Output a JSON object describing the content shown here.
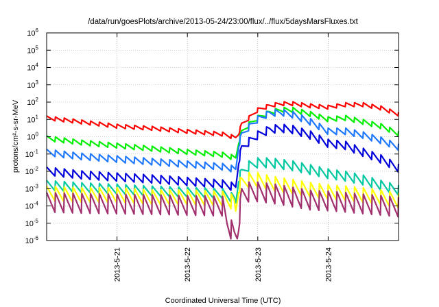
{
  "chart_data": {
    "type": "line",
    "title": "/data/run/goesPlots/archive/2013-05-24/23:00/flux/../flux/5daysMarsFluxes.txt",
    "xlabel": "Coordinated Universal Time (UTC)",
    "ylabel": "protons/cm²-s-sr-MeV",
    "yscale": "log",
    "ylim": [
      1e-06,
      1000000.0
    ],
    "xlim": [
      "2013-05-20T00:00",
      "2013-05-25T00:00"
    ],
    "grid": true,
    "legend": "none",
    "x_ticks": [
      {
        "value": "2013-05-21T00:00",
        "label": "2013-5-21"
      },
      {
        "value": "2013-05-22T00:00",
        "label": "2013-5-22"
      },
      {
        "value": "2013-05-23T00:00",
        "label": "2013-5-23"
      },
      {
        "value": "2013-05-24T00:00",
        "label": "2013-5-24"
      }
    ],
    "y_ticks": [
      {
        "value": 1e-06,
        "base": "10",
        "exp": "-6"
      },
      {
        "value": 1e-05,
        "base": "10",
        "exp": "-5"
      },
      {
        "value": 0.0001,
        "base": "10",
        "exp": "-4"
      },
      {
        "value": 0.001,
        "base": "10",
        "exp": "-3"
      },
      {
        "value": 0.01,
        "base": "10",
        "exp": "-2"
      },
      {
        "value": 0.1,
        "base": "10",
        "exp": "-1"
      },
      {
        "value": 1.0,
        "base": "10",
        "exp": "0"
      },
      {
        "value": 10.0,
        "base": "10",
        "exp": "1"
      },
      {
        "value": 100.0,
        "base": "10",
        "exp": "2"
      },
      {
        "value": 1000.0,
        "base": "10",
        "exp": "3"
      },
      {
        "value": 10000.0,
        "base": "10",
        "exp": "4"
      },
      {
        "value": 100000.0,
        "base": "10",
        "exp": "5"
      },
      {
        "value": 1000000.0,
        "base": "10",
        "exp": "6"
      }
    ],
    "series": [
      {
        "color": "#ff0000",
        "sawtooth": 0.12,
        "x": [
          "2013-05-20T00:00",
          "2013-05-20T12:00",
          "2013-05-21T00:00",
          "2013-05-21T12:00",
          "2013-05-22T00:00",
          "2013-05-22T12:00",
          "2013-05-22T16:00",
          "2013-05-22T16:30",
          "2013-05-22T17:30",
          "2013-05-22T18:30",
          "2013-05-22T21:00",
          "2013-05-23T00:00",
          "2013-05-23T04:00",
          "2013-05-23T08:00",
          "2013-05-23T12:00",
          "2013-05-23T18:00",
          "2013-05-24T00:00",
          "2013-05-24T06:00",
          "2013-05-24T12:00",
          "2013-05-24T18:00",
          "2013-05-25T00:00"
        ],
        "y": [
          12,
          7,
          4,
          3,
          2,
          1.4,
          0.9,
          0.9,
          1.6,
          5,
          12,
          35,
          60,
          80,
          80,
          60,
          50,
          70,
          70,
          45,
          20
        ]
      },
      {
        "color": "#00ee00",
        "sawtooth": 0.15,
        "x": [
          "2013-05-20T00:00",
          "2013-05-20T12:00",
          "2013-05-21T00:00",
          "2013-05-21T12:00",
          "2013-05-22T00:00",
          "2013-05-22T12:00",
          "2013-05-22T16:00",
          "2013-05-22T16:30",
          "2013-05-22T17:30",
          "2013-05-22T18:30",
          "2013-05-22T21:00",
          "2013-05-23T00:00",
          "2013-05-23T04:00",
          "2013-05-23T08:00",
          "2013-05-23T12:00",
          "2013-05-23T18:00",
          "2013-05-24T00:00",
          "2013-05-24T06:00",
          "2013-05-24T12:00",
          "2013-05-24T18:00",
          "2013-05-25T00:00"
        ],
        "y": [
          0.8,
          0.45,
          0.3,
          0.2,
          0.13,
          0.09,
          0.06,
          0.06,
          0.5,
          1.8,
          5,
          12,
          25,
          35,
          35,
          20,
          10,
          12,
          7,
          4,
          1.5
        ]
      },
      {
        "color": "#1e78ff",
        "sawtooth": 0.2,
        "x": [
          "2013-05-20T00:00",
          "2013-05-20T12:00",
          "2013-05-21T00:00",
          "2013-05-21T12:00",
          "2013-05-22T00:00",
          "2013-05-22T12:00",
          "2013-05-22T16:00",
          "2013-05-22T16:30",
          "2013-05-22T17:30",
          "2013-05-22T18:30",
          "2013-05-22T21:00",
          "2013-05-23T00:00",
          "2013-05-23T04:00",
          "2013-05-23T08:00",
          "2013-05-23T12:00",
          "2013-05-23T18:00",
          "2013-05-24T00:00",
          "2013-05-24T06:00",
          "2013-05-24T12:00",
          "2013-05-24T18:00",
          "2013-05-25T00:00"
        ],
        "y": [
          0.12,
          0.07,
          0.05,
          0.035,
          0.025,
          0.018,
          0.013,
          0.013,
          0.35,
          1.2,
          3.5,
          10,
          22,
          25,
          18,
          7,
          2,
          2,
          1.2,
          0.6,
          0.25
        ]
      },
      {
        "color": "#0000dd",
        "sawtooth": 0.25,
        "x": [
          "2013-05-20T00:00",
          "2013-05-20T12:00",
          "2013-05-21T00:00",
          "2013-05-21T12:00",
          "2013-05-22T00:00",
          "2013-05-22T12:00",
          "2013-05-22T16:00",
          "2013-05-22T16:30",
          "2013-05-22T17:30",
          "2013-05-22T18:30",
          "2013-05-22T21:00",
          "2013-05-23T00:00",
          "2013-05-23T04:00",
          "2013-05-23T08:00",
          "2013-05-23T12:00",
          "2013-05-23T18:00",
          "2013-05-24T00:00",
          "2013-05-24T06:00",
          "2013-05-24T12:00",
          "2013-05-24T18:00",
          "2013-05-25T00:00"
        ],
        "y": [
          0.01,
          0.006,
          0.0045,
          0.0035,
          0.0025,
          0.0018,
          0.0012,
          0.0012,
          0.04,
          0.2,
          0.5,
          1.2,
          2.5,
          3,
          2.5,
          1.2,
          0.4,
          0.3,
          0.12,
          0.05,
          0.015
        ]
      },
      {
        "color": "#00c8a0",
        "sawtooth": 0.3,
        "x": [
          "2013-05-20T00:00",
          "2013-05-20T12:00",
          "2013-05-21T00:00",
          "2013-05-21T12:00",
          "2013-05-22T00:00",
          "2013-05-22T12:00",
          "2013-05-22T16:00",
          "2013-05-22T16:30",
          "2013-05-22T17:30",
          "2013-05-22T18:30",
          "2013-05-22T21:00",
          "2013-05-23T00:00",
          "2013-05-23T04:00",
          "2013-05-23T08:00",
          "2013-05-23T12:00",
          "2013-05-23T18:00",
          "2013-05-24T00:00",
          "2013-05-24T06:00",
          "2013-05-24T12:00",
          "2013-05-24T18:00",
          "2013-05-25T00:00"
        ],
        "y": [
          0.0015,
          0.0011,
          0.0009,
          0.0007,
          0.0006,
          0.0005,
          0.00025,
          0.00015,
          0.004,
          0.008,
          0.02,
          0.03,
          0.03,
          0.025,
          0.02,
          0.012,
          0.007,
          0.005,
          0.003,
          0.0015,
          0.0008
        ]
      },
      {
        "color": "#ffff00",
        "sawtooth": 0.45,
        "x": [
          "2013-05-20T00:00",
          "2013-05-20T12:00",
          "2013-05-21T00:00",
          "2013-05-21T12:00",
          "2013-05-22T00:00",
          "2013-05-22T12:00",
          "2013-05-22T16:00",
          "2013-05-22T16:30",
          "2013-05-22T17:30",
          "2013-05-22T18:30",
          "2013-05-22T21:00",
          "2013-05-23T00:00",
          "2013-05-23T04:00",
          "2013-05-23T08:00",
          "2013-05-23T12:00",
          "2013-05-23T18:00",
          "2013-05-24T00:00",
          "2013-05-24T06:00",
          "2013-05-24T12:00",
          "2013-05-24T18:00",
          "2013-05-25T00:00"
        ],
        "y": [
          0.0005,
          0.0004,
          0.0004,
          0.0003,
          0.0003,
          0.00025,
          0.00015,
          5e-05,
          0.0012,
          0.002,
          0.003,
          0.003,
          0.002,
          0.0015,
          0.0012,
          0.0008,
          0.0006,
          0.0005,
          0.0004,
          0.0003,
          0.0002
        ]
      },
      {
        "color": "#a0306e",
        "sawtooth": 0.6,
        "x": [
          "2013-05-20T00:00",
          "2013-05-20T12:00",
          "2013-05-21T00:00",
          "2013-05-21T12:00",
          "2013-05-22T00:00",
          "2013-05-22T12:00",
          "2013-05-22T13:30",
          "2013-05-22T16:00",
          "2013-05-22T17:00",
          "2013-05-22T17:30",
          "2013-05-22T18:30",
          "2013-05-22T21:00",
          "2013-05-23T00:00",
          "2013-05-23T04:00",
          "2013-05-23T08:00",
          "2013-05-23T12:00",
          "2013-05-23T18:00",
          "2013-05-24T00:00",
          "2013-05-24T06:00",
          "2013-05-24T12:00",
          "2013-05-24T18:00",
          "2013-05-25T00:00"
        ],
        "y": [
          0.00015,
          0.00013,
          0.00012,
          0.00011,
          0.0001,
          9e-05,
          1e-05,
          2e-06,
          2e-06,
          1e-05,
          0.0004,
          0.0006,
          0.0006,
          0.0005,
          0.0004,
          0.0003,
          0.0002,
          0.00018,
          0.00015,
          0.00012,
          0.0001,
          8e-05
        ]
      }
    ]
  }
}
